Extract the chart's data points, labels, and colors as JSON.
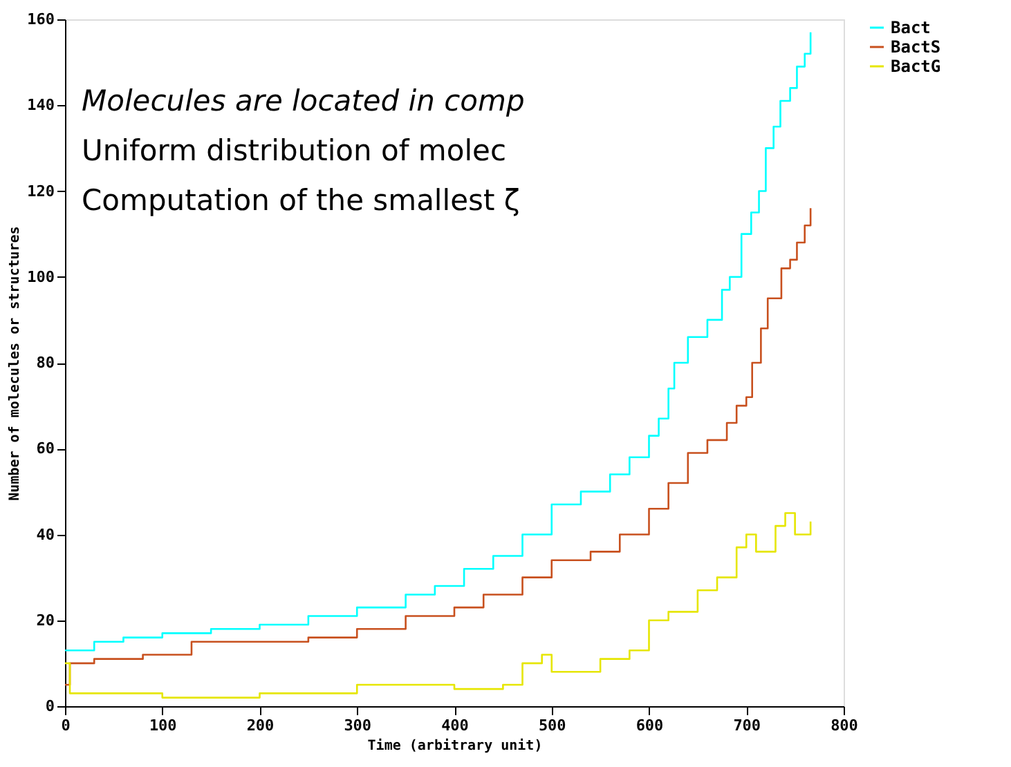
{
  "chart_data": {
    "type": "step",
    "xlabel": "Time (arbitrary unit)",
    "ylabel": "Number of molecules or structures",
    "xlim": [
      0,
      800
    ],
    "ylim": [
      0,
      160
    ],
    "xticks": [
      0,
      100,
      200,
      300,
      400,
      500,
      600,
      700,
      800
    ],
    "yticks": [
      0,
      20,
      40,
      60,
      80,
      100,
      120,
      140,
      160
    ],
    "grid": false,
    "legend": "top right",
    "marker": "none",
    "line_style": "solid",
    "annotations": [
      "Molecules are located in comp",
      "Uniform distribution of molec",
      "Computation of the smallest ζ"
    ],
    "series": [
      {
        "name": "Bact",
        "color": "#00ffff",
        "x": [
          0,
          30,
          60,
          100,
          150,
          200,
          250,
          300,
          350,
          380,
          410,
          440,
          470,
          500,
          530,
          560,
          580,
          600,
          610,
          620,
          626,
          640,
          660,
          675,
          683,
          695,
          705,
          713,
          720,
          728,
          735,
          745,
          752,
          760,
          766
        ],
        "values": [
          13,
          15,
          16,
          17,
          18,
          19,
          21,
          23,
          26,
          28,
          32,
          35,
          40,
          47,
          50,
          54,
          58,
          63,
          67,
          74,
          80,
          86,
          90,
          97,
          100,
          110,
          115,
          120,
          130,
          135,
          141,
          144,
          149,
          152,
          157
        ]
      },
      {
        "name": "BactS",
        "color": "#c8501e",
        "x": [
          0,
          5,
          30,
          80,
          130,
          200,
          250,
          300,
          350,
          400,
          430,
          470,
          500,
          540,
          570,
          600,
          620,
          640,
          660,
          680,
          690,
          700,
          706,
          715,
          722,
          736,
          745,
          752,
          760,
          766
        ],
        "values": [
          5,
          10,
          11,
          12,
          15,
          15,
          16,
          18,
          21,
          23,
          26,
          30,
          34,
          36,
          40,
          46,
          52,
          59,
          62,
          66,
          70,
          72,
          80,
          88,
          95,
          102,
          104,
          108,
          112,
          116
        ]
      },
      {
        "name": "BactG",
        "color": "#e6e600",
        "x": [
          0,
          5,
          100,
          200,
          300,
          400,
          450,
          470,
          490,
          500,
          550,
          580,
          600,
          620,
          650,
          670,
          690,
          700,
          710,
          730,
          740,
          750,
          766
        ],
        "values": [
          10,
          3,
          2,
          3,
          5,
          4,
          5,
          10,
          12,
          8,
          11,
          13,
          20,
          22,
          27,
          30,
          37,
          40,
          36,
          42,
          45,
          40,
          43
        ]
      }
    ]
  }
}
